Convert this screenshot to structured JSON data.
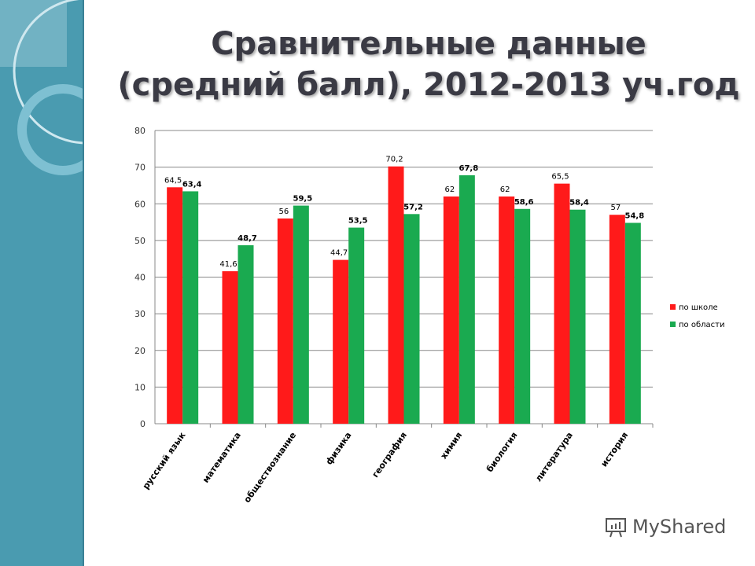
{
  "title_line1": "Сравнительные данные",
  "title_line2": "(средний балл), 2012-2013 уч.год",
  "watermark": "MyShared",
  "chart_data": {
    "type": "bar",
    "categories": [
      "русский язык",
      "математика",
      "обществознание",
      "физика",
      "география",
      "химия",
      "биология",
      "литература",
      "история"
    ],
    "series": [
      {
        "name": "по школе",
        "color": "#ff1a1a",
        "values": [
          64.5,
          41.6,
          56,
          44.7,
          70.2,
          62,
          62,
          65.5,
          57
        ],
        "labels": [
          "64,5",
          "41,6",
          "56",
          "44,7",
          "70,2",
          "62",
          "62",
          "65,5",
          "57"
        ]
      },
      {
        "name": "по области",
        "color": "#1aaa50",
        "values": [
          63.4,
          48.7,
          59.5,
          53.5,
          57.2,
          67.8,
          58.6,
          58.4,
          54.8
        ],
        "labels": [
          "63,4",
          "48,7",
          "59,5",
          "53,5",
          "57,2",
          "67,8",
          "58,6",
          "58,4",
          "54,8"
        ]
      }
    ],
    "ylim": [
      0,
      80
    ],
    "yticks": [
      0,
      10,
      20,
      30,
      40,
      50,
      60,
      70,
      80
    ],
    "grid": true,
    "legend": "right"
  }
}
